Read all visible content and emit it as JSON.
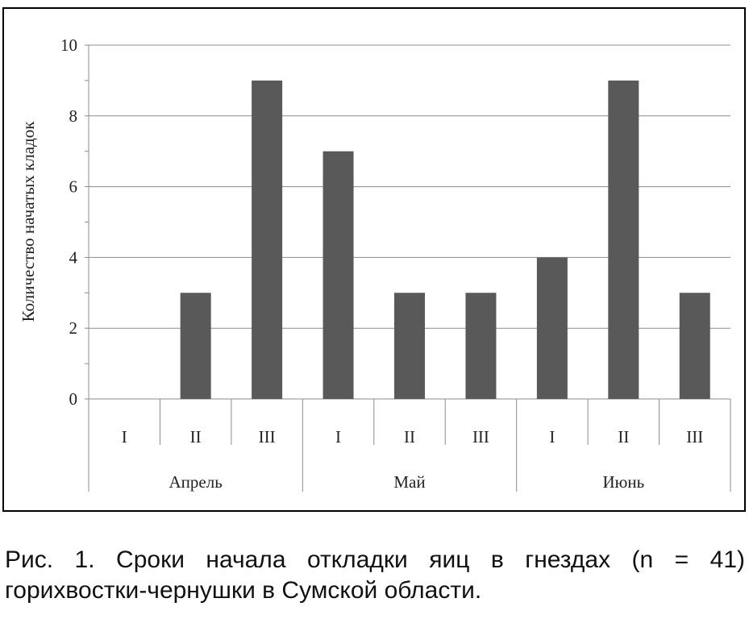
{
  "chart_data": {
    "type": "bar",
    "title": "",
    "xlabel": "",
    "ylabel": "Количество начатых кладок",
    "ylim": [
      0,
      10
    ],
    "yticks": [
      "0",
      "2",
      "4",
      "6",
      "8",
      "10"
    ],
    "grid": true,
    "legend": "none",
    "bar_color": "#595959",
    "categories": [
      "I",
      "II",
      "III",
      "I",
      "II",
      "III",
      "I",
      "II",
      "III"
    ],
    "groups": [
      {
        "label": "Апрель",
        "categories": [
          "I",
          "II",
          "III"
        ]
      },
      {
        "label": "Май",
        "categories": [
          "I",
          "II",
          "III"
        ]
      },
      {
        "label": "Июнь",
        "categories": [
          "I",
          "II",
          "III"
        ]
      }
    ],
    "values": [
      0,
      3,
      9,
      7,
      3,
      3,
      4,
      9,
      3
    ]
  },
  "caption": {
    "line1": "Рис. 1. Сроки начала откладки яиц в гнездах (n = 41)",
    "line2": "горихвостки-чернушки в Сумской области."
  }
}
